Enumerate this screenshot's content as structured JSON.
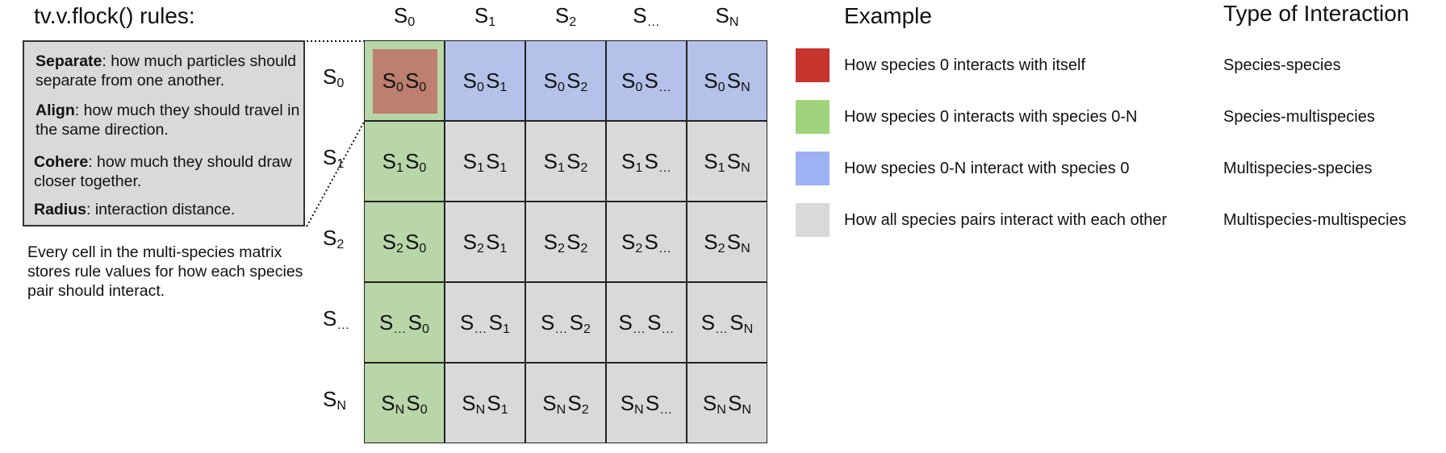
{
  "title": "tv.v.flock() rules:",
  "rules": [
    {
      "name": "Separate",
      "text": ": how much particles should separate from one another."
    },
    {
      "name": "Align",
      "text": ": how much they should travel in the same direction."
    },
    {
      "name": "Cohere",
      "text": ": how much they should draw closer together."
    },
    {
      "name": "Radius",
      "text": ": interaction distance."
    }
  ],
  "caption": "Every cell in the multi-species matrix stores rule values for how each species pair should interact.",
  "species": [
    {
      "base": "S",
      "sub": "0"
    },
    {
      "base": "S",
      "sub": "1"
    },
    {
      "base": "S",
      "sub": "2"
    },
    {
      "base": "S",
      "sub": "…"
    },
    {
      "base": "S",
      "sub": "N"
    }
  ],
  "colors": {
    "species_species": "#c8352f",
    "species_multispecies": "#9fd47c",
    "multispecies_species": "#9db1f3",
    "multispecies_multispecies": "#d9d9d9",
    "cell_green": "#b9d6a8",
    "cell_blue": "#b4c1e8",
    "cell_gray": "#d9d9d9",
    "cell_highlight": "#bd7f6f"
  },
  "legend": {
    "title": "Example",
    "type_title": "Type of Interaction",
    "items": [
      {
        "color": "#c8352f",
        "text": "How species 0 interacts with itself",
        "type": "Species-species"
      },
      {
        "color": "#9fd47c",
        "text": "How species 0 interacts with species 0-N",
        "type": "Species-multispecies"
      },
      {
        "color": "#9db1f3",
        "text": "How species 0-N interact with species 0",
        "type": "Multispecies-species"
      },
      {
        "color": "#d9d9d9",
        "text": "How all species pairs interact with each other",
        "type": "Multispecies-multispecies"
      }
    ]
  }
}
